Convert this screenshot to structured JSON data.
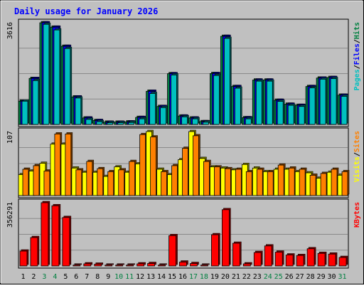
{
  "chart_data": {
    "type": "bar",
    "title": "Daily usage for January 2026",
    "days": [
      "1",
      "2",
      "3",
      "4",
      "5",
      "6",
      "7",
      "8",
      "9",
      "10",
      "11",
      "12",
      "13",
      "14",
      "15",
      "16",
      "17",
      "18",
      "19",
      "20",
      "21",
      "22",
      "23",
      "24",
      "25",
      "26",
      "27",
      "28",
      "29",
      "30",
      "31"
    ],
    "weekend_days": [
      "3",
      "4",
      "10",
      "11",
      "17",
      "18",
      "24",
      "25",
      "31"
    ],
    "panels": [
      {
        "id": "hits_files_pages",
        "max_label": "3616",
        "legend": [
          {
            "text": "Pages",
            "color": "#00c0c0"
          },
          {
            "text": "/",
            "color": "#000000"
          },
          {
            "text": "Files",
            "color": "#0000ff"
          },
          {
            "text": "/",
            "color": "#000000"
          },
          {
            "text": "Hits",
            "color": "#008040"
          }
        ],
        "series": [
          {
            "name": "Hits",
            "color": "#008040",
            "values": [
              828,
              1637,
              3616,
              3460,
              2780,
              980,
              230,
              140,
              80,
              80,
              90,
              250,
              1180,
              640,
              1805,
              300,
              230,
              100,
              1810,
              3134,
              1350,
              240,
              1580,
              1580,
              860,
              720,
              680,
              1350,
              1650,
              1670,
              1040
            ]
          },
          {
            "name": "Files",
            "color": "#0000ff",
            "values": [
              828,
              1637,
              3616,
              3460,
              2780,
              980,
              230,
              140,
              80,
              80,
              90,
              250,
              1180,
              640,
              1805,
              300,
              230,
              100,
              1810,
              3134,
              1350,
              240,
              1580,
              1580,
              860,
              720,
              680,
              1350,
              1650,
              1670,
              1040
            ]
          },
          {
            "name": "Pages",
            "color": "#00c0c0",
            "values": [
              828,
              1560,
              3560,
              3360,
              2700,
              940,
              180,
              100,
              60,
              60,
              70,
              200,
              1100,
              600,
              1760,
              270,
              200,
              80,
              1740,
              3060,
              1290,
              200,
              1540,
              1540,
              820,
              680,
              640,
              1300,
              1610,
              1630,
              1000
            ]
          }
        ]
      },
      {
        "id": "visits_sites",
        "max_label": "107",
        "legend": [
          {
            "text": "Visits",
            "color": "#ffff00"
          },
          {
            "text": "/",
            "color": "#000000"
          },
          {
            "text": "Sites",
            "color": "#ff8000"
          }
        ],
        "series": [
          {
            "name": "Visits",
            "color": "#ffff00",
            "values": [
              35,
              41,
              54,
              86,
              86,
              46,
              39,
              39,
              32,
              48,
              39,
              53,
              107,
              44,
              35,
              60,
              107,
              62,
              48,
              46,
              43,
              52,
              46,
              40,
              44,
              44,
              40,
              38,
              29,
              39,
              34
            ]
          },
          {
            "name": "Sites",
            "color": "#ff8000",
            "values": [
              44,
              50,
              41,
              103,
              103,
              43,
              57,
              45,
              40,
              43,
              57,
              102,
              98,
              40,
              50,
              79,
              100,
              57,
              48,
              45,
              44,
              40,
              44,
              40,
              51,
              46,
              44,
              34,
              37,
              44,
              40
            ]
          }
        ]
      },
      {
        "id": "kbytes",
        "max_label": "356291",
        "legend": [
          {
            "text": "KBytes",
            "color": "#ff0000"
          }
        ],
        "series": [
          {
            "name": "KBytes",
            "color": "#ff0000",
            "values": [
              84000,
              160000,
              356291,
              339000,
              273000,
              5000,
              12000,
              10000,
              5000,
              5000,
              5000,
              12000,
              14000,
              5000,
              171000,
              22000,
              14000,
              5000,
              176000,
              317000,
              128000,
              12000,
              76000,
              113000,
              78000,
              62000,
              59000,
              97000,
              71000,
              67000,
              48000
            ]
          }
        ]
      }
    ]
  }
}
